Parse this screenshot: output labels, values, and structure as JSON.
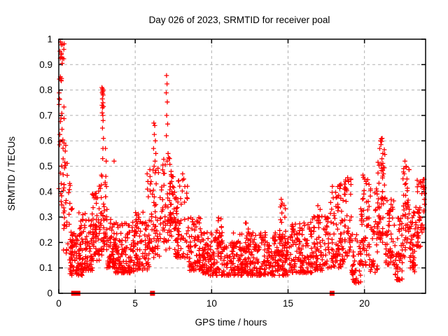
{
  "chart_data": {
    "type": "scatter",
    "title": "Day 026 of 2023, SRMTID for receiver poal",
    "xlabel": "GPS time / hours",
    "ylabel": "SRMTID / TECUs",
    "xlim": [
      0,
      24
    ],
    "ylim": [
      0,
      1
    ],
    "xticks": [
      0,
      5,
      10,
      15,
      20
    ],
    "xtick_labels": [
      "0",
      "5",
      "10",
      "15",
      "20"
    ],
    "yticks": [
      0,
      0.1,
      0.2,
      0.3,
      0.4,
      0.5,
      0.6,
      0.7,
      0.8,
      0.9,
      1
    ],
    "ytick_labels": [
      "0",
      "0.1",
      "0.2",
      "0.3",
      "0.4",
      "0.5",
      "0.6",
      "0.7",
      "0.8",
      "0.9",
      "1"
    ],
    "grid": {
      "show": true,
      "style": "dashed",
      "color": "#b0b0b0"
    },
    "legend": "none",
    "marker": {
      "shape": "plus",
      "color": "#ff0000",
      "size": 7
    },
    "border_color": "#000000",
    "series_name": "SRMTID",
    "baseline_squares_x": [
      0.97,
      1.25,
      6.13,
      17.88
    ],
    "density_bands": [
      {
        "x0": 0.0,
        "x1": 0.38,
        "ylo": 0.55,
        "yhi": 1.0,
        "n": 26,
        "pow": 1.0
      },
      {
        "x0": 0.0,
        "x1": 0.55,
        "ylo": 0.26,
        "yhi": 0.62,
        "n": 26,
        "pow": 1.0
      },
      {
        "x0": 0.3,
        "x1": 0.9,
        "ylo": 0.15,
        "yhi": 0.44,
        "n": 30,
        "pow": 1.4
      },
      {
        "x0": 0.7,
        "x1": 1.6,
        "ylo": 0.07,
        "yhi": 0.24,
        "n": 85,
        "pow": 1.5
      },
      {
        "x0": 1.3,
        "x1": 2.2,
        "ylo": 0.09,
        "yhi": 0.33,
        "n": 75,
        "pow": 1.7
      },
      {
        "x0": 2.1,
        "x1": 2.65,
        "ylo": 0.12,
        "yhi": 0.4,
        "n": 60,
        "pow": 1.5
      },
      {
        "x0": 2.6,
        "x1": 3.15,
        "ylo": 0.15,
        "yhi": 0.48,
        "n": 50,
        "pow": 1.3
      },
      {
        "x0": 3.1,
        "x1": 3.7,
        "ylo": 0.1,
        "yhi": 0.3,
        "n": 55,
        "pow": 1.5
      },
      {
        "x0": 3.6,
        "x1": 5.0,
        "ylo": 0.08,
        "yhi": 0.28,
        "n": 135,
        "pow": 1.7
      },
      {
        "x0": 5.0,
        "x1": 5.95,
        "ylo": 0.09,
        "yhi": 0.33,
        "n": 85,
        "pow": 1.6
      },
      {
        "x0": 5.9,
        "x1": 6.6,
        "ylo": 0.14,
        "yhi": 0.5,
        "n": 55,
        "pow": 1.5
      },
      {
        "x0": 6.6,
        "x1": 7.3,
        "ylo": 0.17,
        "yhi": 0.55,
        "n": 55,
        "pow": 1.4
      },
      {
        "x0": 7.25,
        "x1": 7.6,
        "ylo": 0.22,
        "yhi": 0.48,
        "n": 28,
        "pow": 1.2
      },
      {
        "x0": 7.55,
        "x1": 8.5,
        "ylo": 0.14,
        "yhi": 0.46,
        "n": 75,
        "pow": 1.6
      },
      {
        "x0": 8.5,
        "x1": 9.4,
        "ylo": 0.09,
        "yhi": 0.3,
        "n": 80,
        "pow": 1.6
      },
      {
        "x0": 9.4,
        "x1": 15.0,
        "ylo": 0.07,
        "yhi": 0.24,
        "n": 480,
        "pow": 1.5
      },
      {
        "x0": 10.25,
        "x1": 10.65,
        "ylo": 0.18,
        "yhi": 0.31,
        "n": 14,
        "pow": 1.2
      },
      {
        "x0": 12.15,
        "x1": 12.55,
        "ylo": 0.16,
        "yhi": 0.28,
        "n": 12,
        "pow": 1.2
      },
      {
        "x0": 14.35,
        "x1": 14.85,
        "ylo": 0.15,
        "yhi": 0.37,
        "n": 20,
        "pow": 1.3
      },
      {
        "x0": 15.0,
        "x1": 16.6,
        "ylo": 0.08,
        "yhi": 0.28,
        "n": 135,
        "pow": 1.5
      },
      {
        "x0": 16.6,
        "x1": 17.65,
        "ylo": 0.09,
        "yhi": 0.31,
        "n": 90,
        "pow": 1.4
      },
      {
        "x0": 17.7,
        "x1": 18.7,
        "ylo": 0.1,
        "yhi": 0.43,
        "n": 95,
        "pow": 1.5
      },
      {
        "x0": 18.7,
        "x1": 19.15,
        "ylo": 0.14,
        "yhi": 0.46,
        "n": 40,
        "pow": 1.3
      },
      {
        "x0": 19.15,
        "x1": 19.75,
        "ylo": 0.04,
        "yhi": 0.24,
        "n": 45,
        "pow": 1.4
      },
      {
        "x0": 19.75,
        "x1": 20.35,
        "ylo": 0.11,
        "yhi": 0.47,
        "n": 55,
        "pow": 1.5
      },
      {
        "x0": 20.35,
        "x1": 20.85,
        "ylo": 0.08,
        "yhi": 0.44,
        "n": 40,
        "pow": 1.5
      },
      {
        "x0": 20.85,
        "x1": 21.35,
        "ylo": 0.2,
        "yhi": 0.59,
        "n": 55,
        "pow": 1.3
      },
      {
        "x0": 21.35,
        "x1": 22.0,
        "ylo": 0.11,
        "yhi": 0.37,
        "n": 55,
        "pow": 1.5
      },
      {
        "x0": 22.0,
        "x1": 22.5,
        "ylo": 0.05,
        "yhi": 0.3,
        "n": 45,
        "pow": 1.4
      },
      {
        "x0": 22.5,
        "x1": 22.95,
        "ylo": 0.14,
        "yhi": 0.5,
        "n": 45,
        "pow": 1.3
      },
      {
        "x0": 22.95,
        "x1": 23.35,
        "ylo": 0.08,
        "yhi": 0.32,
        "n": 40,
        "pow": 1.4
      },
      {
        "x0": 23.3,
        "x1": 23.95,
        "ylo": 0.18,
        "yhi": 0.45,
        "n": 55,
        "pow": 1.1
      }
    ],
    "spike_points": [
      [
        0.25,
        0.98
      ],
      [
        0.16,
        0.94
      ],
      [
        0.1,
        0.925
      ],
      [
        0.22,
        0.905
      ],
      [
        2.82,
        0.81
      ],
      [
        2.86,
        0.805
      ],
      [
        2.9,
        0.8
      ],
      [
        2.88,
        0.795
      ],
      [
        2.84,
        0.79
      ],
      [
        2.87,
        0.785
      ],
      [
        2.9,
        0.78
      ],
      [
        2.85,
        0.765
      ],
      [
        2.89,
        0.75
      ],
      [
        2.83,
        0.74
      ],
      [
        2.92,
        0.735
      ],
      [
        2.86,
        0.73
      ],
      [
        2.84,
        0.71
      ],
      [
        2.88,
        0.7
      ],
      [
        2.9,
        0.68
      ],
      [
        2.86,
        0.65
      ],
      [
        2.92,
        0.61
      ],
      [
        2.89,
        0.57
      ],
      [
        2.87,
        0.53
      ],
      [
        3.05,
        0.57
      ],
      [
        3.1,
        0.52
      ],
      [
        3.08,
        0.46
      ],
      [
        3.12,
        0.42
      ],
      [
        3.06,
        0.38
      ],
      [
        3.15,
        0.33
      ],
      [
        3.62,
        0.52
      ],
      [
        5.78,
        0.47
      ],
      [
        5.83,
        0.44
      ],
      [
        5.8,
        0.41
      ],
      [
        5.86,
        0.38
      ],
      [
        6.22,
        0.67
      ],
      [
        6.28,
        0.66
      ],
      [
        6.25,
        0.625
      ],
      [
        6.32,
        0.6
      ],
      [
        6.2,
        0.57
      ],
      [
        6.35,
        0.55
      ],
      [
        6.3,
        0.52
      ],
      [
        6.24,
        0.5
      ],
      [
        7.05,
        0.857
      ],
      [
        7.08,
        0.824
      ],
      [
        7.03,
        0.789
      ],
      [
        7.1,
        0.753
      ],
      [
        7.06,
        0.7
      ],
      [
        7.12,
        0.666
      ],
      [
        7.04,
        0.62
      ],
      [
        7.15,
        0.55
      ],
      [
        7.09,
        0.52
      ],
      [
        7.35,
        0.48
      ],
      [
        7.42,
        0.46
      ],
      [
        7.38,
        0.44
      ],
      [
        7.45,
        0.42
      ],
      [
        7.4,
        0.4
      ],
      [
        8.1,
        0.47
      ],
      [
        8.18,
        0.45
      ],
      [
        8.25,
        0.42
      ],
      [
        14.55,
        0.37
      ],
      [
        14.62,
        0.355
      ],
      [
        14.5,
        0.34
      ],
      [
        16.95,
        0.345
      ],
      [
        17.1,
        0.33
      ],
      [
        18.25,
        0.42
      ],
      [
        18.9,
        0.455
      ],
      [
        18.95,
        0.44
      ],
      [
        19.45,
        0.045
      ],
      [
        19.9,
        0.465
      ],
      [
        20.0,
        0.45
      ],
      [
        20.1,
        0.44
      ],
      [
        21.05,
        0.6
      ],
      [
        21.1,
        0.608
      ],
      [
        21.13,
        0.598
      ],
      [
        21.16,
        0.61
      ],
      [
        21.08,
        0.585
      ],
      [
        21.0,
        0.57
      ],
      [
        21.3,
        0.565
      ],
      [
        21.2,
        0.55
      ],
      [
        22.2,
        0.055
      ],
      [
        22.65,
        0.52
      ],
      [
        22.72,
        0.5
      ],
      [
        22.6,
        0.47
      ],
      [
        22.78,
        0.45
      ],
      [
        23.45,
        0.445
      ],
      [
        23.55,
        0.43
      ],
      [
        23.7,
        0.42
      ]
    ]
  }
}
